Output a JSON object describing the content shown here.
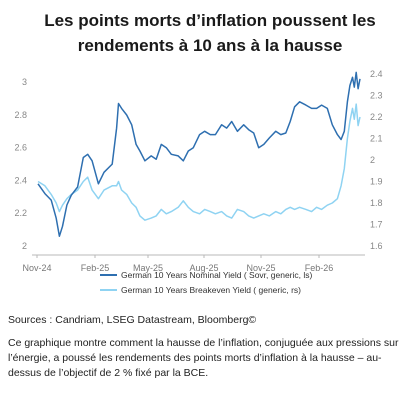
{
  "title_line1": "Les points morts d’inflation poussent les",
  "title_line2": "rendements à 10 ans à la hausse",
  "source": "Sources : Candriam, LSEG Datastream, Bloomberg©",
  "caption": "Ce graphique montre comment la hausse de l’inflation, conjuguée aux pressions sur l’énergie, a poussé les rendements des points morts d’inflation à la hausse – au-dessus de l’objectif de 2 % fixé par la BCE.",
  "chart_data": {
    "type": "line",
    "x_ticks": [
      "Nov-24",
      "Feb-25",
      "May-25",
      "Aug-25",
      "Nov-25",
      "Feb-26"
    ],
    "y_left": {
      "ylim": [
        2.0,
        3.05
      ],
      "ticks": [
        "2",
        "2.2",
        "2.4",
        "2.6",
        "2.8",
        "3"
      ]
    },
    "y_right": {
      "ylim": [
        1.6,
        2.4
      ],
      "ticks": [
        "1.6",
        "1.7",
        "1.8",
        "1.9",
        "2",
        "2.1",
        "2.2",
        "2.3",
        "2.4"
      ]
    },
    "legend_position": "bottom",
    "series": [
      {
        "name": "German 10 Years Nominal Yield ( Sovr, generic, ls)",
        "axis": "left",
        "color": "#2e6fb0",
        "points": [
          [
            "2024-10-30",
            2.38
          ],
          [
            "2024-11-10",
            2.32
          ],
          [
            "2024-11-20",
            2.28
          ],
          [
            "2024-11-28",
            2.17
          ],
          [
            "2024-12-03",
            2.06
          ],
          [
            "2024-12-08",
            2.12
          ],
          [
            "2024-12-15",
            2.25
          ],
          [
            "2024-12-22",
            2.31
          ],
          [
            "2025-01-01",
            2.36
          ],
          [
            "2025-01-10",
            2.54
          ],
          [
            "2025-01-17",
            2.56
          ],
          [
            "2025-01-24",
            2.52
          ],
          [
            "2025-02-03",
            2.38
          ],
          [
            "2025-02-12",
            2.45
          ],
          [
            "2025-02-25",
            2.5
          ],
          [
            "2025-03-04",
            2.72
          ],
          [
            "2025-03-07",
            2.87
          ],
          [
            "2025-03-12",
            2.84
          ],
          [
            "2025-03-20",
            2.8
          ],
          [
            "2025-03-28",
            2.74
          ],
          [
            "2025-04-04",
            2.62
          ],
          [
            "2025-04-10",
            2.58
          ],
          [
            "2025-04-18",
            2.52
          ],
          [
            "2025-04-28",
            2.55
          ],
          [
            "2025-05-06",
            2.53
          ],
          [
            "2025-05-14",
            2.62
          ],
          [
            "2025-05-22",
            2.6
          ],
          [
            "2025-05-30",
            2.56
          ],
          [
            "2025-06-10",
            2.55
          ],
          [
            "2025-06-18",
            2.52
          ],
          [
            "2025-06-26",
            2.58
          ],
          [
            "2025-07-04",
            2.6
          ],
          [
            "2025-07-14",
            2.68
          ],
          [
            "2025-07-22",
            2.7
          ],
          [
            "2025-07-31",
            2.68
          ],
          [
            "2025-08-08",
            2.68
          ],
          [
            "2025-08-18",
            2.74
          ],
          [
            "2025-08-26",
            2.72
          ],
          [
            "2025-09-03",
            2.76
          ],
          [
            "2025-09-12",
            2.7
          ],
          [
            "2025-09-22",
            2.74
          ],
          [
            "2025-09-30",
            2.71
          ],
          [
            "2025-10-08",
            2.69
          ],
          [
            "2025-10-16",
            2.6
          ],
          [
            "2025-10-24",
            2.62
          ],
          [
            "2025-11-02",
            2.66
          ],
          [
            "2025-11-12",
            2.7
          ],
          [
            "2025-11-20",
            2.68
          ],
          [
            "2025-11-28",
            2.69
          ],
          [
            "2025-12-05",
            2.76
          ],
          [
            "2025-12-12",
            2.85
          ],
          [
            "2025-12-20",
            2.88
          ],
          [
            "2025-12-30",
            2.86
          ],
          [
            "2026-01-08",
            2.84
          ],
          [
            "2026-01-16",
            2.84
          ],
          [
            "2026-01-24",
            2.86
          ],
          [
            "2026-02-02",
            2.84
          ],
          [
            "2026-02-10",
            2.74
          ],
          [
            "2026-02-18",
            2.68
          ],
          [
            "2026-02-24",
            2.65
          ],
          [
            "2026-03-01",
            2.7
          ],
          [
            "2026-03-06",
            2.88
          ],
          [
            "2026-03-10",
            2.98
          ],
          [
            "2026-03-14",
            3.03
          ],
          [
            "2026-03-17",
            2.97
          ],
          [
            "2026-03-20",
            3.06
          ],
          [
            "2026-03-23",
            2.96
          ],
          [
            "2026-03-26",
            3.02
          ]
        ]
      },
      {
        "name": "German 10 Years Breakeven Yield ( generic, rs)",
        "axis": "right",
        "color": "#8fd3f2",
        "points": [
          [
            "2024-10-30",
            1.9
          ],
          [
            "2024-11-10",
            1.88
          ],
          [
            "2024-11-20",
            1.84
          ],
          [
            "2024-11-28",
            1.8
          ],
          [
            "2024-12-03",
            1.76
          ],
          [
            "2024-12-08",
            1.79
          ],
          [
            "2024-12-15",
            1.82
          ],
          [
            "2024-12-22",
            1.84
          ],
          [
            "2025-01-01",
            1.86
          ],
          [
            "2025-01-10",
            1.9
          ],
          [
            "2025-01-17",
            1.92
          ],
          [
            "2025-01-24",
            1.86
          ],
          [
            "2025-02-03",
            1.82
          ],
          [
            "2025-02-12",
            1.86
          ],
          [
            "2025-02-25",
            1.88
          ],
          [
            "2025-03-04",
            1.88
          ],
          [
            "2025-03-07",
            1.9
          ],
          [
            "2025-03-12",
            1.86
          ],
          [
            "2025-03-20",
            1.84
          ],
          [
            "2025-03-28",
            1.8
          ],
          [
            "2025-04-04",
            1.78
          ],
          [
            "2025-04-10",
            1.74
          ],
          [
            "2025-04-18",
            1.72
          ],
          [
            "2025-04-28",
            1.73
          ],
          [
            "2025-05-06",
            1.74
          ],
          [
            "2025-05-14",
            1.77
          ],
          [
            "2025-05-22",
            1.75
          ],
          [
            "2025-05-30",
            1.76
          ],
          [
            "2025-06-10",
            1.78
          ],
          [
            "2025-06-18",
            1.81
          ],
          [
            "2025-06-26",
            1.78
          ],
          [
            "2025-07-04",
            1.76
          ],
          [
            "2025-07-14",
            1.75
          ],
          [
            "2025-07-22",
            1.77
          ],
          [
            "2025-07-31",
            1.76
          ],
          [
            "2025-08-08",
            1.75
          ],
          [
            "2025-08-18",
            1.76
          ],
          [
            "2025-08-26",
            1.74
          ],
          [
            "2025-09-03",
            1.73
          ],
          [
            "2025-09-12",
            1.77
          ],
          [
            "2025-09-22",
            1.76
          ],
          [
            "2025-09-30",
            1.74
          ],
          [
            "2025-10-08",
            1.73
          ],
          [
            "2025-10-16",
            1.74
          ],
          [
            "2025-10-24",
            1.75
          ],
          [
            "2025-11-02",
            1.74
          ],
          [
            "2025-11-12",
            1.76
          ],
          [
            "2025-11-20",
            1.75
          ],
          [
            "2025-11-28",
            1.77
          ],
          [
            "2025-12-05",
            1.78
          ],
          [
            "2025-12-12",
            1.77
          ],
          [
            "2025-12-20",
            1.78
          ],
          [
            "2025-12-30",
            1.77
          ],
          [
            "2026-01-08",
            1.76
          ],
          [
            "2026-01-16",
            1.78
          ],
          [
            "2026-01-24",
            1.77
          ],
          [
            "2026-02-02",
            1.79
          ],
          [
            "2026-02-10",
            1.8
          ],
          [
            "2026-02-18",
            1.82
          ],
          [
            "2026-02-24",
            1.88
          ],
          [
            "2026-03-01",
            1.96
          ],
          [
            "2026-03-06",
            2.1
          ],
          [
            "2026-03-10",
            2.18
          ],
          [
            "2026-03-14",
            2.24
          ],
          [
            "2026-03-17",
            2.19
          ],
          [
            "2026-03-20",
            2.26
          ],
          [
            "2026-03-23",
            2.16
          ],
          [
            "2026-03-26",
            2.2
          ]
        ]
      }
    ]
  }
}
